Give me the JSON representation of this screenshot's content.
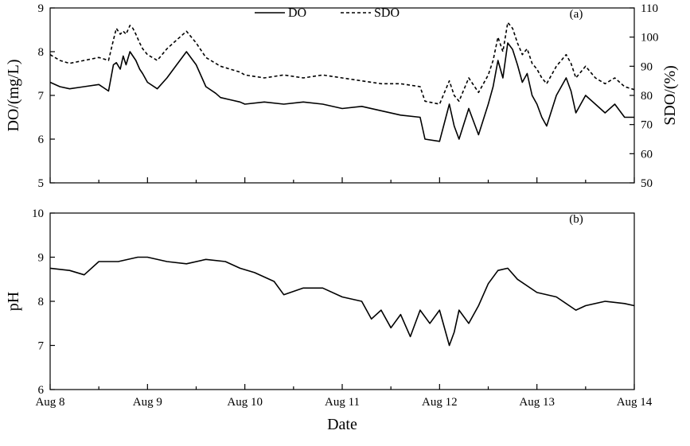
{
  "chart_data": [
    {
      "type": "line",
      "panel_label": "(a)",
      "xlabel": "",
      "ylabel": "DO/(mg/L)",
      "y2label": "SDO/(%)",
      "ylim": [
        5,
        9
      ],
      "y2lim": [
        50,
        110
      ],
      "yticks": [
        5,
        6,
        7,
        8,
        9
      ],
      "y2ticks": [
        50,
        60,
        70,
        80,
        90,
        100,
        110
      ],
      "xlim": [
        "Aug 8",
        "Aug 14"
      ],
      "legend_position": "top-center",
      "x_unit": "days since Aug 8 00:00",
      "series": [
        {
          "name": "DO",
          "axis": "left",
          "style": "solid",
          "x": [
            0,
            0.1,
            0.2,
            0.35,
            0.5,
            0.6,
            0.65,
            0.68,
            0.72,
            0.75,
            0.78,
            0.82,
            0.85,
            0.88,
            0.92,
            0.95,
            1.0,
            1.1,
            1.2,
            1.3,
            1.4,
            1.5,
            1.6,
            1.7,
            1.75,
            1.85,
            1.95,
            2.0,
            2.2,
            2.4,
            2.6,
            2.8,
            3.0,
            3.2,
            3.4,
            3.6,
            3.8,
            3.85,
            4.0,
            4.1,
            4.15,
            4.2,
            4.3,
            4.4,
            4.5,
            4.55,
            4.6,
            4.65,
            4.7,
            4.75,
            4.8,
            4.85,
            4.9,
            4.95,
            5.0,
            5.05,
            5.1,
            5.2,
            5.3,
            5.35,
            5.4,
            5.45,
            5.5,
            5.6,
            5.7,
            5.8,
            5.9,
            6.0
          ],
          "values": [
            7.3,
            7.2,
            7.15,
            7.2,
            7.25,
            7.1,
            7.7,
            7.75,
            7.6,
            7.9,
            7.7,
            8.0,
            7.9,
            7.8,
            7.6,
            7.5,
            7.3,
            7.15,
            7.4,
            7.7,
            8.0,
            7.7,
            7.2,
            7.05,
            6.95,
            6.9,
            6.85,
            6.8,
            6.85,
            6.8,
            6.85,
            6.8,
            6.7,
            6.75,
            6.65,
            6.55,
            6.5,
            6.0,
            5.95,
            6.8,
            6.3,
            6.0,
            6.7,
            6.1,
            6.8,
            7.2,
            7.8,
            7.4,
            8.2,
            8.05,
            7.7,
            7.3,
            7.5,
            7.0,
            6.8,
            6.5,
            6.3,
            7.0,
            7.4,
            7.1,
            6.6,
            6.8,
            7.0,
            6.8,
            6.6,
            6.8,
            6.5,
            6.5
          ]
        },
        {
          "name": "SDO",
          "axis": "right",
          "style": "dashed",
          "x": [
            0,
            0.1,
            0.2,
            0.35,
            0.5,
            0.6,
            0.65,
            0.68,
            0.72,
            0.75,
            0.78,
            0.82,
            0.85,
            0.88,
            0.92,
            0.95,
            1.0,
            1.1,
            1.2,
            1.3,
            1.4,
            1.5,
            1.6,
            1.7,
            1.75,
            1.85,
            1.95,
            2.0,
            2.2,
            2.4,
            2.6,
            2.8,
            3.0,
            3.2,
            3.4,
            3.6,
            3.8,
            3.85,
            4.0,
            4.1,
            4.15,
            4.2,
            4.3,
            4.4,
            4.5,
            4.55,
            4.6,
            4.65,
            4.7,
            4.75,
            4.8,
            4.85,
            4.9,
            4.95,
            5.0,
            5.05,
            5.1,
            5.2,
            5.3,
            5.35,
            5.4,
            5.45,
            5.5,
            5.6,
            5.7,
            5.8,
            5.9,
            6.0
          ],
          "values": [
            94,
            92,
            91,
            92,
            93,
            92,
            99,
            103,
            101,
            102,
            101,
            104,
            103,
            101,
            98,
            96,
            94,
            92,
            96,
            99,
            102,
            98,
            93,
            91,
            90,
            89,
            88,
            87,
            86,
            87,
            86,
            87,
            86,
            85,
            84,
            84,
            83,
            78,
            77,
            85,
            80,
            78,
            86,
            81,
            87,
            92,
            100,
            95,
            105,
            103,
            98,
            94,
            96,
            91,
            89,
            86,
            84,
            90,
            94,
            91,
            86,
            88,
            90,
            86,
            84,
            86,
            83,
            82
          ]
        }
      ]
    },
    {
      "type": "line",
      "panel_label": "(b)",
      "xlabel": "Date",
      "ylabel": "pH",
      "ylim": [
        6,
        10
      ],
      "yticks": [
        6,
        7,
        8,
        9,
        10
      ],
      "xlim": [
        "Aug 8",
        "Aug 14"
      ],
      "x_unit": "days since Aug 8 00:00",
      "categories": [
        "Aug 8",
        "Aug 9",
        "Aug 10",
        "Aug 11",
        "Aug 12",
        "Aug 13",
        "Aug 14"
      ],
      "series": [
        {
          "name": "",
          "style": "solid",
          "x": [
            0,
            0.2,
            0.35,
            0.5,
            0.7,
            0.9,
            1.0,
            1.2,
            1.4,
            1.6,
            1.8,
            1.95,
            2.1,
            2.3,
            2.4,
            2.6,
            2.8,
            3.0,
            3.2,
            3.3,
            3.4,
            3.5,
            3.6,
            3.7,
            3.8,
            3.9,
            4.0,
            4.1,
            4.15,
            4.2,
            4.3,
            4.4,
            4.5,
            4.6,
            4.7,
            4.8,
            5.0,
            5.2,
            5.4,
            5.5,
            5.7,
            5.9,
            6.0
          ],
          "values": [
            8.75,
            8.7,
            8.6,
            8.9,
            8.9,
            9.0,
            9.0,
            8.9,
            8.85,
            8.95,
            8.9,
            8.75,
            8.65,
            8.45,
            8.15,
            8.3,
            8.3,
            8.1,
            8.0,
            7.6,
            7.8,
            7.4,
            7.7,
            7.2,
            7.8,
            7.5,
            7.8,
            7.0,
            7.3,
            7.8,
            7.5,
            7.9,
            8.4,
            8.7,
            8.75,
            8.5,
            8.2,
            8.1,
            7.8,
            7.9,
            8.0,
            7.95,
            7.9
          ]
        }
      ]
    }
  ],
  "legend": {
    "do_label": "DO",
    "sdo_label": "SDO"
  },
  "x_axis": {
    "ticks": [
      "Aug 8",
      "Aug 9",
      "Aug 10",
      "Aug 11",
      "Aug 12",
      "Aug 13",
      "Aug 14"
    ],
    "title": "Date"
  },
  "colors": {
    "line": "#000000",
    "axis": "#000000",
    "background": "#ffffff"
  }
}
